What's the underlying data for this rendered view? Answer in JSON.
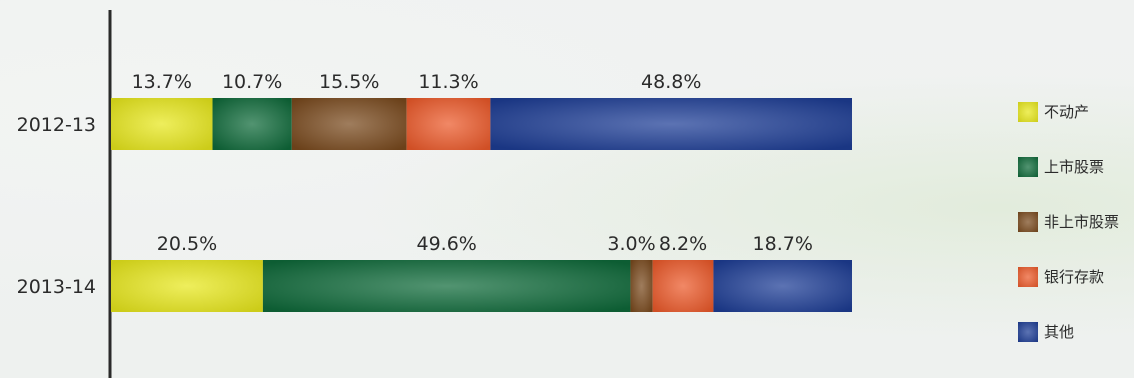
{
  "chart_data": {
    "type": "bar",
    "orientation": "horizontal",
    "stacked": true,
    "percent_stacked": true,
    "categories": [
      "2012-13",
      "2013-14"
    ],
    "series": [
      {
        "name": "不动产",
        "values": [
          13.7,
          20.5
        ],
        "labels": [
          "13.7%",
          "20.5%"
        ],
        "color": "#e8e81c"
      },
      {
        "name": "上市股票",
        "values": [
          10.7,
          49.6
        ],
        "labels": [
          "10.7%",
          "49.6%"
        ],
        "color": "#0f6a3a"
      },
      {
        "name": "非上市股票",
        "values": [
          15.5,
          3.0
        ],
        "labels": [
          "15.5%",
          "3.0%"
        ],
        "color": "#7a4a1e"
      },
      {
        "name": "银行存款",
        "values": [
          11.3,
          8.2
        ],
        "labels": [
          "11.3%",
          "8.2%"
        ],
        "color": "#ec5a2a"
      },
      {
        "name": "其他",
        "values": [
          48.8,
          18.7
        ],
        "labels": [
          "48.8%",
          "18.7%"
        ],
        "color": "#1d3d95"
      }
    ],
    "legend_position": "right",
    "grid": false
  }
}
